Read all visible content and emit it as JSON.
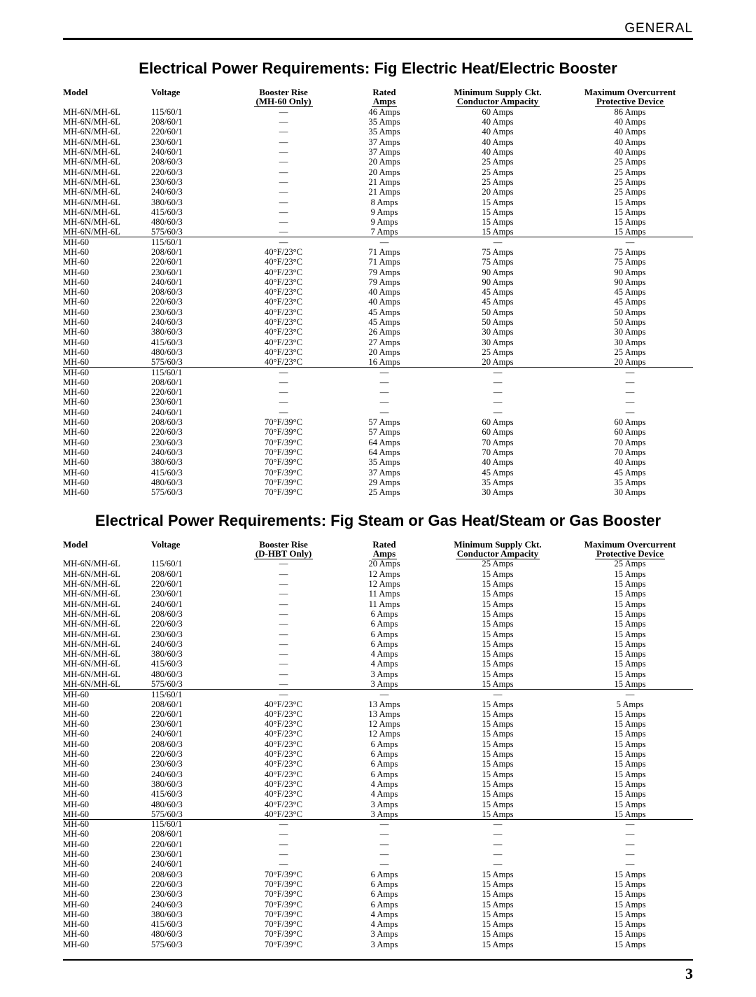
{
  "header": {
    "section": "GENERAL"
  },
  "page_number": "3",
  "columns": {
    "model": "Model",
    "voltage": "Voltage",
    "booster_rise": "Booster Rise",
    "rated": "Rated",
    "rated2": "Amps",
    "min": "Minimum Supply Ckt.",
    "min2": "Conductor Ampacity",
    "max": "Maximum Overcurrent",
    "max2": "Protective Device"
  },
  "table1": {
    "title": "Electrical Power Requirements: Fig  Electric Heat/Electric Booster",
    "booster_sub": "(MH-60 Only)",
    "rows": [
      [
        "MH-6N/MH-6L",
        "115/60/1",
        "—",
        "46 Amps",
        "60 Amps",
        "86 Amps"
      ],
      [
        "MH-6N/MH-6L",
        "208/60/1",
        "—",
        "35 Amps",
        "40 Amps",
        "40 Amps"
      ],
      [
        "MH-6N/MH-6L",
        "220/60/1",
        "—",
        "35 Amps",
        "40 Amps",
        "40 Amps"
      ],
      [
        "MH-6N/MH-6L",
        "230/60/1",
        "—",
        "37 Amps",
        "40 Amps",
        "40 Amps"
      ],
      [
        "MH-6N/MH-6L",
        "240/60/1",
        "—",
        "37 Amps",
        "40 Amps",
        "40 Amps"
      ],
      [
        "MH-6N/MH-6L",
        "208/60/3",
        "—",
        "20 Amps",
        "25 Amps",
        "25 Amps"
      ],
      [
        "MH-6N/MH-6L",
        "220/60/3",
        "—",
        "20 Amps",
        "25 Amps",
        "25 Amps"
      ],
      [
        "MH-6N/MH-6L",
        "230/60/3",
        "—",
        "21 Amps",
        "25 Amps",
        "25 Amps"
      ],
      [
        "MH-6N/MH-6L",
        "240/60/3",
        "—",
        "21 Amps",
        "20 Amps",
        "25 Amps"
      ],
      [
        "MH-6N/MH-6L",
        "380/60/3",
        "—",
        "8 Amps",
        "15 Amps",
        "15 Amps"
      ],
      [
        "MH-6N/MH-6L",
        "415/60/3",
        "—",
        "9 Amps",
        "15 Amps",
        "15 Amps"
      ],
      [
        "MH-6N/MH-6L",
        "480/60/3",
        "—",
        "9 Amps",
        "15 Amps",
        "15 Amps"
      ],
      [
        "MH-6N/MH-6L",
        "575/60/3",
        "—",
        "7 Amps",
        "15 Amps",
        "15 Amps",
        "hr-after"
      ],
      [
        "MH-60",
        "115/60/1",
        "—",
        "—",
        "—",
        "—"
      ],
      [
        "MH-60",
        "208/60/1",
        "40°F/23°C",
        "71 Amps",
        "75 Amps",
        "75 Amps"
      ],
      [
        "MH-60",
        "220/60/1",
        "40°F/23°C",
        "71 Amps",
        "75 Amps",
        "75 Amps"
      ],
      [
        "MH-60",
        "230/60/1",
        "40°F/23°C",
        "79 Amps",
        "90 Amps",
        "90 Amps"
      ],
      [
        "MH-60",
        "240/60/1",
        "40°F/23°C",
        "79 Amps",
        "90 Amps",
        "90 Amps"
      ],
      [
        "MH-60",
        "208/60/3",
        "40°F/23°C",
        "40 Amps",
        "45 Amps",
        "45 Amps"
      ],
      [
        "MH-60",
        "220/60/3",
        "40°F/23°C",
        "40 Amps",
        "45 Amps",
        "45 Amps"
      ],
      [
        "MH-60",
        "230/60/3",
        "40°F/23°C",
        "45 Amps",
        "50 Amps",
        "50 Amps"
      ],
      [
        "MH-60",
        "240/60/3",
        "40°F/23°C",
        "45 Amps",
        "50 Amps",
        "50 Amps"
      ],
      [
        "MH-60",
        "380/60/3",
        "40°F/23°C",
        "26 Amps",
        "30 Amps",
        "30 Amps"
      ],
      [
        "MH-60",
        "415/60/3",
        "40°F/23°C",
        "27 Amps",
        "30 Amps",
        "30 Amps"
      ],
      [
        "MH-60",
        "480/60/3",
        "40°F/23°C",
        "20 Amps",
        "25 Amps",
        "25 Amps"
      ],
      [
        "MH-60",
        "575/60/3",
        "40°F/23°C",
        "16 Amps",
        "20 Amps",
        "20 Amps",
        "hr-after"
      ],
      [
        "MH-60",
        "115/60/1",
        "—",
        "—",
        "—",
        "—"
      ],
      [
        "MH-60",
        "208/60/1",
        "—",
        "—",
        "—",
        "—"
      ],
      [
        "MH-60",
        "220/60/1",
        "—",
        "—",
        "—",
        "—"
      ],
      [
        "MH-60",
        "230/60/1",
        "—",
        "—",
        "—",
        "—"
      ],
      [
        "MH-60",
        "240/60/1",
        "—",
        "—",
        "—",
        "—"
      ],
      [
        "MH-60",
        "208/60/3",
        "70°F/39°C",
        "57 Amps",
        "60 Amps",
        "60 Amps"
      ],
      [
        "MH-60",
        "220/60/3",
        "70°F/39°C",
        "57 Amps",
        "60 Amps",
        "60 Amps"
      ],
      [
        "MH-60",
        "230/60/3",
        "70°F/39°C",
        "64 Amps",
        "70 Amps",
        "70 Amps"
      ],
      [
        "MH-60",
        "240/60/3",
        "70°F/39°C",
        "64 Amps",
        "70 Amps",
        "70 Amps"
      ],
      [
        "MH-60",
        "380/60/3",
        "70°F/39°C",
        "35 Amps",
        "40 Amps",
        "40 Amps"
      ],
      [
        "MH-60",
        "415/60/3",
        "70°F/39°C",
        "37 Amps",
        "45 Amps",
        "45 Amps"
      ],
      [
        "MH-60",
        "480/60/3",
        "70°F/39°C",
        "29 Amps",
        "35 Amps",
        "35 Amps"
      ],
      [
        "MH-60",
        "575/60/3",
        "70°F/39°C",
        "25 Amps",
        "30 Amps",
        "30 Amps"
      ]
    ]
  },
  "table2": {
    "title": "Electrical Power Requirements: Fig  Steam or Gas Heat/Steam or Gas Booster",
    "booster_sub": "(D-HBT Only)",
    "rows": [
      [
        "MH-6N/MH-6L",
        "115/60/1",
        "—",
        "20 Amps",
        "25 Amps",
        "25 Amps"
      ],
      [
        "MH-6N/MH-6L",
        "208/60/1",
        "—",
        "12 Amps",
        "15 Amps",
        "15 Amps"
      ],
      [
        "MH-6N/MH-6L",
        "220/60/1",
        "—",
        "12 Amps",
        "15 Amps",
        "15 Amps"
      ],
      [
        "MH-6N/MH-6L",
        "230/60/1",
        "—",
        "11 Amps",
        "15 Amps",
        "15 Amps"
      ],
      [
        "MH-6N/MH-6L",
        "240/60/1",
        "—",
        "11 Amps",
        "15 Amps",
        "15 Amps"
      ],
      [
        "MH-6N/MH-6L",
        "208/60/3",
        "—",
        "6 Amps",
        "15 Amps",
        "15 Amps"
      ],
      [
        "MH-6N/MH-6L",
        "220/60/3",
        "—",
        "6 Amps",
        "15 Amps",
        "15 Amps"
      ],
      [
        "MH-6N/MH-6L",
        "230/60/3",
        "—",
        "6 Amps",
        "15 Amps",
        "15 Amps"
      ],
      [
        "MH-6N/MH-6L",
        "240/60/3",
        "—",
        "6 Amps",
        "15 Amps",
        "15 Amps"
      ],
      [
        "MH-6N/MH-6L",
        "380/60/3",
        "—",
        "4 Amps",
        "15 Amps",
        "15 Amps"
      ],
      [
        "MH-6N/MH-6L",
        "415/60/3",
        "—",
        "4 Amps",
        "15 Amps",
        "15 Amps"
      ],
      [
        "MH-6N/MH-6L",
        "480/60/3",
        "—",
        "3 Amps",
        "15 Amps",
        "15 Amps"
      ],
      [
        "MH-6N/MH-6L",
        "575/60/3",
        "—",
        "3 Amps",
        "15 Amps",
        "15 Amps",
        "hr-after"
      ],
      [
        "MH-60",
        "115/60/1",
        "—",
        "—",
        "—",
        "—"
      ],
      [
        "MH-60",
        "208/60/1",
        "40°F/23°C",
        "13 Amps",
        "15 Amps",
        "5 Amps"
      ],
      [
        "MH-60",
        "220/60/1",
        "40°F/23°C",
        "13 Amps",
        "15 Amps",
        "15 Amps"
      ],
      [
        "MH-60",
        "230/60/1",
        "40°F/23°C",
        "12 Amps",
        "15 Amps",
        "15 Amps"
      ],
      [
        "MH-60",
        "240/60/1",
        "40°F/23°C",
        "12 Amps",
        "15 Amps",
        "15 Amps"
      ],
      [
        "MH-60",
        "208/60/3",
        "40°F/23°C",
        "6 Amps",
        "15 Amps",
        "15 Amps"
      ],
      [
        "MH-60",
        "220/60/3",
        "40°F/23°C",
        "6 Amps",
        "15 Amps",
        "15 Amps"
      ],
      [
        "MH-60",
        "230/60/3",
        "40°F/23°C",
        "6 Amps",
        "15 Amps",
        "15 Amps"
      ],
      [
        "MH-60",
        "240/60/3",
        "40°F/23°C",
        "6 Amps",
        "15 Amps",
        "15 Amps"
      ],
      [
        "MH-60",
        "380/60/3",
        "40°F/23°C",
        "4 Amps",
        "15 Amps",
        "15 Amps"
      ],
      [
        "MH-60",
        "415/60/3",
        "40°F/23°C",
        "4 Amps",
        "15 Amps",
        "15 Amps"
      ],
      [
        "MH-60",
        "480/60/3",
        "40°F/23°C",
        "3 Amps",
        "15 Amps",
        "15 Amps"
      ],
      [
        "MH-60",
        "575/60/3",
        "40°F/23°C",
        "3 Amps",
        "15 Amps",
        "15 Amps",
        "hr-after"
      ],
      [
        "MH-60",
        "115/60/1",
        "—",
        "—",
        "—",
        "—"
      ],
      [
        "MH-60",
        "208/60/1",
        "—",
        "—",
        "—",
        "—"
      ],
      [
        "MH-60",
        "220/60/1",
        "—",
        "—",
        "—",
        "—"
      ],
      [
        "MH-60",
        "230/60/1",
        "—",
        "—",
        "—",
        "—"
      ],
      [
        "MH-60",
        "240/60/1",
        "—",
        "—",
        "—",
        "—"
      ],
      [
        "MH-60",
        "208/60/3",
        "70°F/39°C",
        "6 Amps",
        "15 Amps",
        "15 Amps"
      ],
      [
        "MH-60",
        "220/60/3",
        "70°F/39°C",
        "6 Amps",
        "15 Amps",
        "15 Amps"
      ],
      [
        "MH-60",
        "230/60/3",
        "70°F/39°C",
        "6 Amps",
        "15 Amps",
        "15 Amps"
      ],
      [
        "MH-60",
        "240/60/3",
        "70°F/39°C",
        "6 Amps",
        "15 Amps",
        "15 Amps"
      ],
      [
        "MH-60",
        "380/60/3",
        "70°F/39°C",
        "4 Amps",
        "15 Amps",
        "15 Amps"
      ],
      [
        "MH-60",
        "415/60/3",
        "70°F/39°C",
        "4 Amps",
        "15 Amps",
        "15 Amps"
      ],
      [
        "MH-60",
        "480/60/3",
        "70°F/39°C",
        "3 Amps",
        "15 Amps",
        "15 Amps"
      ],
      [
        "MH-60",
        "575/60/3",
        "70°F/39°C",
        "3 Amps",
        "15 Amps",
        "15 Amps"
      ]
    ]
  }
}
